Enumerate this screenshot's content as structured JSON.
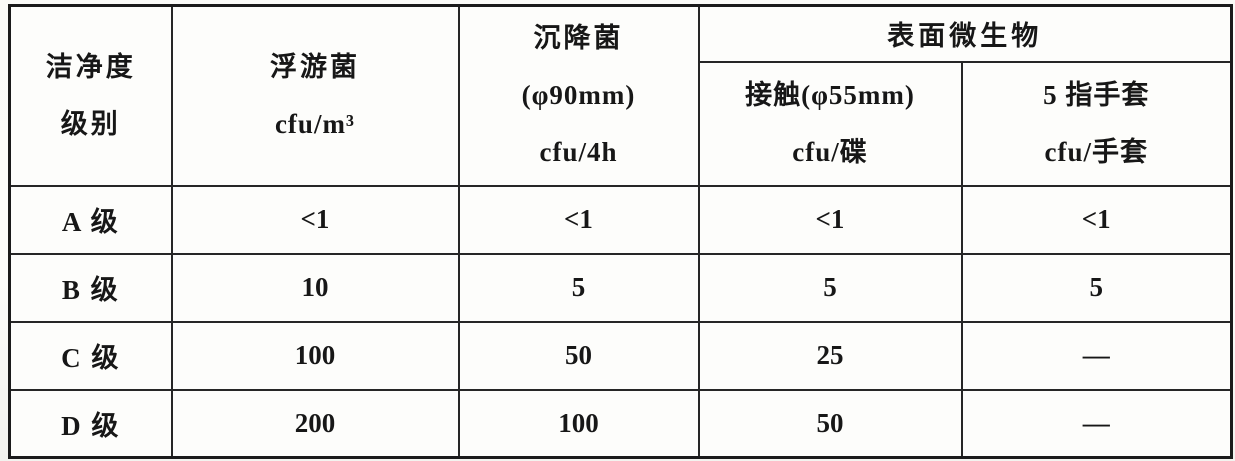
{
  "table": {
    "header": {
      "grade": {
        "line1": "洁净度",
        "line2": "级别"
      },
      "airborne": {
        "line1": "浮游菌",
        "line2": "cfu/m³"
      },
      "settle": {
        "line1": "沉降菌",
        "line2": "(φ90mm)",
        "line3": "cfu/4h"
      },
      "surface_group": "表面微生物",
      "contact": {
        "line1": "接触(φ55mm)",
        "line2": "cfu/碟"
      },
      "glove": {
        "line1": "5 指手套",
        "line2": "cfu/手套"
      }
    },
    "rows": [
      {
        "grade": "A 级",
        "airborne": "<1",
        "settle": "<1",
        "contact": "<1",
        "glove": "<1"
      },
      {
        "grade": "B 级",
        "airborne": "10",
        "settle": "5",
        "contact": "5",
        "glove": "5"
      },
      {
        "grade": "C 级",
        "airborne": "100",
        "settle": "50",
        "contact": "25",
        "glove": "—"
      },
      {
        "grade": "D 级",
        "airborne": "200",
        "settle": "100",
        "contact": "50",
        "glove": "—"
      }
    ]
  },
  "colors": {
    "paper": "#fdfdfb",
    "ink": "#171717",
    "border": "#262626"
  }
}
